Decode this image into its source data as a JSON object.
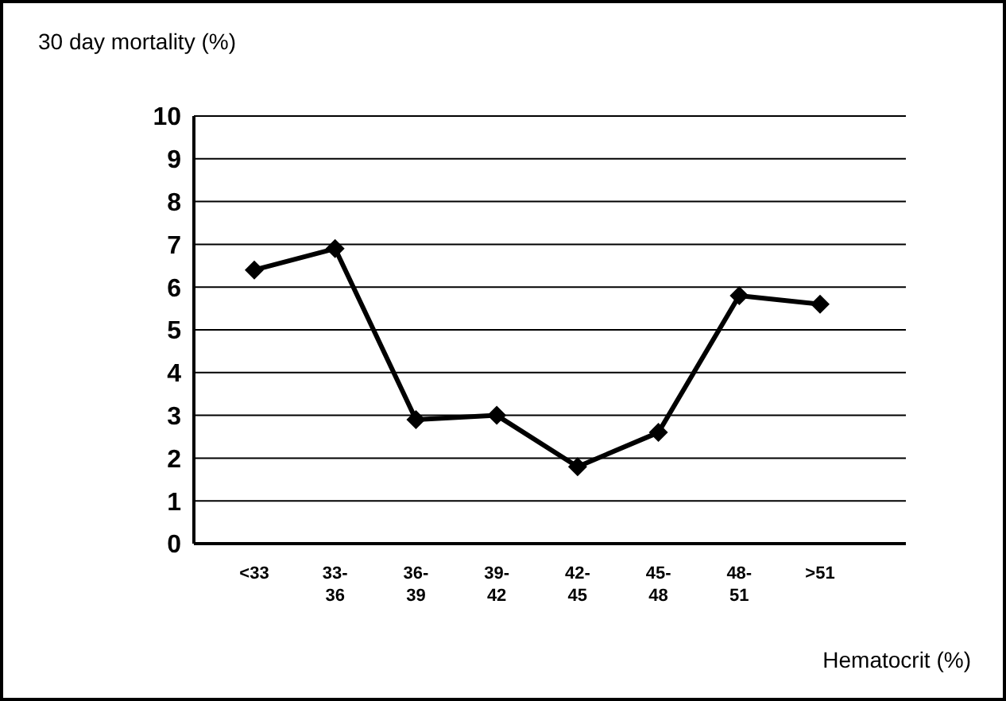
{
  "chart_data": {
    "type": "line",
    "ylabel": "30 day mortality (%)",
    "xlabel": "Hematocrit (%)",
    "categories": [
      "<33",
      "33-36",
      "36-39",
      "39-42",
      "42-45",
      "45-48",
      "48-51",
      ">51"
    ],
    "series": [
      {
        "color": "#000000",
        "values": [
          6.4,
          6.9,
          2.9,
          3.0,
          1.8,
          2.6,
          5.8,
          5.6
        ]
      }
    ],
    "ylim": [
      0,
      10
    ],
    "yticks": [
      0,
      1,
      2,
      3,
      4,
      5,
      6,
      7,
      8,
      9,
      10
    ],
    "grid": "y",
    "marker": "diamond",
    "line_style": "solid"
  }
}
